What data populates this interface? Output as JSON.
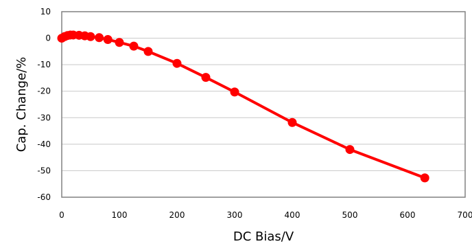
{
  "chart_data": {
    "type": "line",
    "title": "",
    "xlabel": "DC Bias/V",
    "ylabel": "Cap. Change/%",
    "xlim": [
      0,
      700
    ],
    "ylim": [
      -60,
      10
    ],
    "xticks": [
      "0",
      "100",
      "200",
      "300",
      "400",
      "500",
      "600",
      "700"
    ],
    "yticks": [
      "10",
      "0",
      "-10",
      "-20",
      "-30",
      "-40",
      "-50",
      "-60"
    ],
    "grid": true,
    "legend": "none",
    "series": [
      {
        "color": "#ff0000",
        "x": [
          0,
          5,
          10,
          15,
          20,
          30,
          40,
          50,
          65,
          80,
          100,
          125,
          150,
          200,
          250,
          300,
          400,
          500,
          630
        ],
        "y": [
          0.0,
          0.6,
          1.0,
          1.2,
          1.2,
          1.1,
          0.9,
          0.6,
          0.2,
          -0.5,
          -1.6,
          -3.0,
          -5.0,
          -9.5,
          -14.8,
          -20.3,
          -31.8,
          -42.0,
          -52.7
        ]
      }
    ]
  }
}
